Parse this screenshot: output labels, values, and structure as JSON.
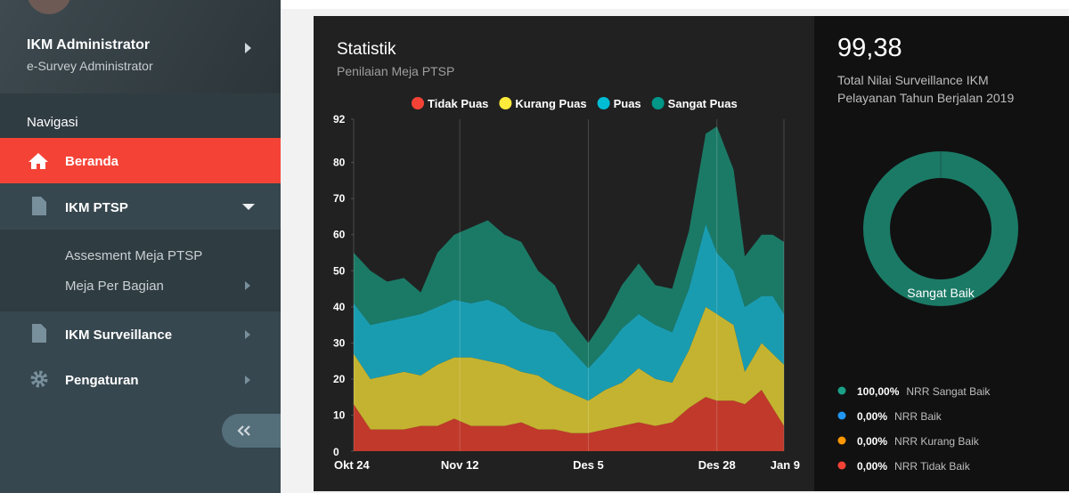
{
  "sidebar": {
    "user": {
      "name": "IKM Administrator",
      "role": "e-Survey Administrator"
    },
    "section": "Navigasi",
    "menu": [
      {
        "label": "Beranda"
      },
      {
        "label": "IKM PTSP",
        "children": [
          "Assesment Meja PTSP",
          "Meja Per Bagian"
        ]
      },
      {
        "label": "IKM Surveillance"
      },
      {
        "label": "Pengaturan"
      }
    ]
  },
  "chart_data": [
    {
      "type": "area",
      "title": "Statistik",
      "subtitle": "Penilaian Meja PTSP",
      "x": [
        0,
        3,
        6,
        9,
        12,
        15,
        18,
        21,
        24,
        27,
        30,
        33,
        36,
        39,
        42,
        45,
        48,
        51,
        54,
        57,
        60,
        63,
        65,
        68,
        70,
        73,
        75,
        77
      ],
      "xlim": [
        0,
        77
      ],
      "xticks": [
        {
          "value": 0,
          "label": "Okt 24"
        },
        {
          "value": 19,
          "label": "Nov 12"
        },
        {
          "value": 42,
          "label": "Des 5"
        },
        {
          "value": 65,
          "label": "Des 28"
        },
        {
          "value": 77,
          "label": "Jan 9"
        }
      ],
      "ylim": [
        0,
        92
      ],
      "yticks": [
        0,
        10,
        20,
        30,
        40,
        50,
        60,
        70,
        80,
        92
      ],
      "stacked": true,
      "grid": "x",
      "series": [
        {
          "name": "Tidak Puas",
          "color": "#c0392b",
          "legend_color": "#f44336",
          "values": [
            13,
            6,
            6,
            6,
            7,
            7,
            9,
            7,
            7,
            7,
            8,
            6,
            6,
            5,
            5,
            6,
            7,
            8,
            7,
            8,
            12,
            15,
            14,
            14,
            13,
            17,
            12,
            7
          ]
        },
        {
          "name": "Kurang Puas",
          "color": "#c4b330",
          "legend_color": "#ffeb3b",
          "values": [
            14,
            14,
            15,
            16,
            14,
            17,
            17,
            19,
            18,
            17,
            14,
            15,
            12,
            11,
            9,
            11,
            12,
            15,
            13,
            11,
            16,
            25,
            24,
            21,
            9,
            13,
            15,
            17
          ]
        },
        {
          "name": "Puas",
          "color": "#1a9cb0",
          "legend_color": "#00bcd4",
          "values": [
            14,
            15,
            15,
            15,
            17,
            16,
            16,
            15,
            17,
            16,
            14,
            13,
            15,
            12,
            9,
            11,
            15,
            15,
            15,
            14,
            17,
            23,
            17,
            15,
            18,
            13,
            16,
            14
          ]
        },
        {
          "name": "Sangat Puas",
          "color": "#1b7a66",
          "legend_color": "#009688",
          "values": [
            14,
            15,
            11,
            11,
            6,
            15,
            18,
            21,
            22,
            20,
            22,
            16,
            13,
            8,
            7,
            9,
            12,
            14,
            11,
            12,
            16,
            25,
            35,
            28,
            14,
            17,
            17,
            20
          ]
        }
      ]
    },
    {
      "type": "pie",
      "title": "99,38",
      "subtitle": "Total Nilai Surveillance IKM Pelayanan Tahun Berjalan 2019",
      "center_label": "Sangat Baik",
      "categories": [
        "NRR Sangat Baik",
        "NRR Baik",
        "NRR Kurang Baik",
        "NRR Tidak Baik"
      ],
      "values": [
        100,
        0,
        0,
        0
      ],
      "value_labels": [
        "100,00%",
        "0,00%",
        "0,00%",
        "0,00%"
      ],
      "colors": [
        "#1b7a66",
        "#2196f3",
        "#ff9800",
        "#f44336"
      ],
      "legend_colors": [
        "#1aa086",
        "#2196f3",
        "#ff9800",
        "#f44336"
      ]
    }
  ]
}
